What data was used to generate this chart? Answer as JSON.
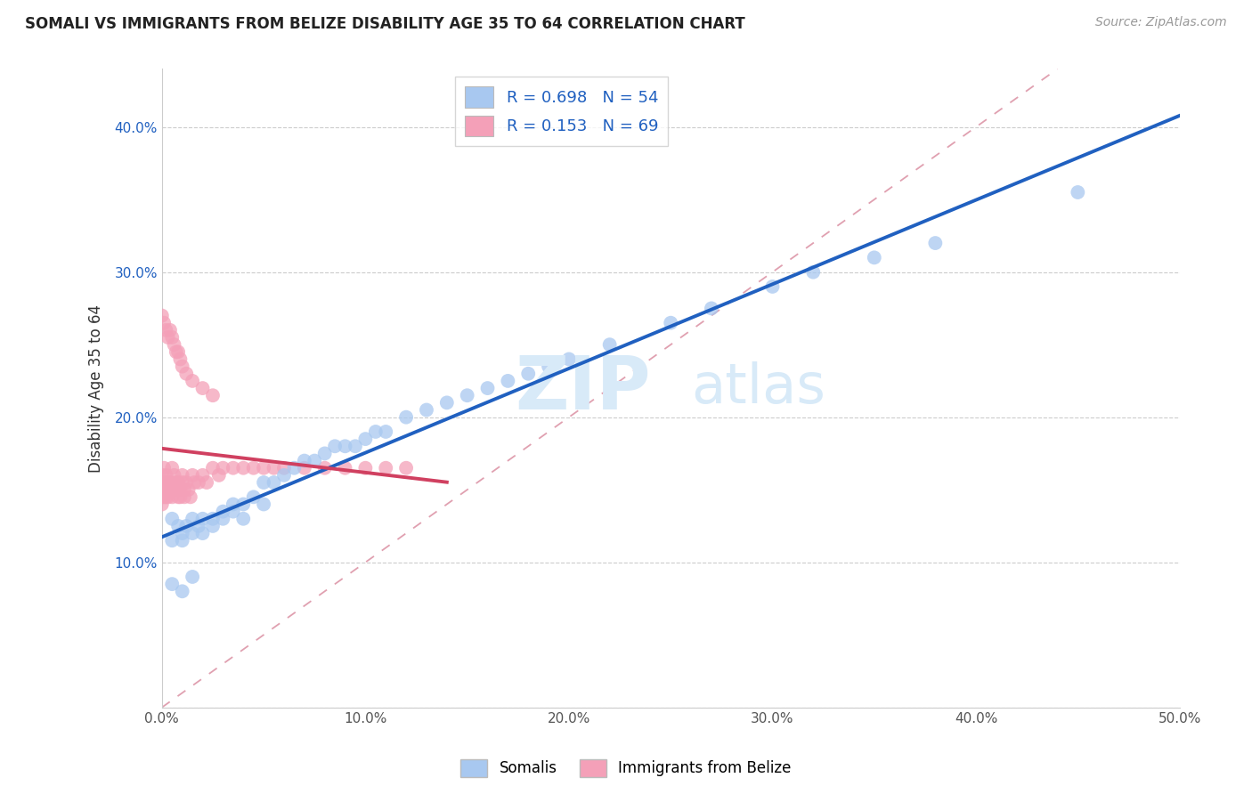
{
  "title": "SOMALI VS IMMIGRANTS FROM BELIZE DISABILITY AGE 35 TO 64 CORRELATION CHART",
  "source": "Source: ZipAtlas.com",
  "ylabel": "Disability Age 35 to 64",
  "xlim": [
    0.0,
    0.5
  ],
  "ylim": [
    0.0,
    0.44
  ],
  "xticks": [
    0.0,
    0.1,
    0.2,
    0.3,
    0.4,
    0.5
  ],
  "yticks": [
    0.0,
    0.1,
    0.2,
    0.3,
    0.4
  ],
  "somali_R": 0.698,
  "somali_N": 54,
  "belize_R": 0.153,
  "belize_N": 69,
  "somali_color": "#a8c8f0",
  "belize_color": "#f4a0b8",
  "somali_line_color": "#2060c0",
  "belize_line_color": "#d04060",
  "ref_line_color": "#e0a0b0",
  "legend_label_somali": "Somalis",
  "legend_label_belize": "Immigrants from Belize",
  "watermark_zip": "ZIP",
  "watermark_atlas": "atlas",
  "somali_x": [
    0.005,
    0.005,
    0.008,
    0.01,
    0.01,
    0.012,
    0.015,
    0.015,
    0.018,
    0.02,
    0.02,
    0.025,
    0.025,
    0.03,
    0.03,
    0.035,
    0.035,
    0.04,
    0.04,
    0.045,
    0.05,
    0.05,
    0.055,
    0.06,
    0.065,
    0.07,
    0.075,
    0.08,
    0.085,
    0.09,
    0.095,
    0.1,
    0.105,
    0.11,
    0.12,
    0.13,
    0.14,
    0.15,
    0.16,
    0.17,
    0.18,
    0.19,
    0.2,
    0.22,
    0.25,
    0.27,
    0.3,
    0.32,
    0.35,
    0.005,
    0.01,
    0.015,
    0.38,
    0.45
  ],
  "somali_y": [
    0.13,
    0.115,
    0.125,
    0.12,
    0.115,
    0.125,
    0.12,
    0.13,
    0.125,
    0.13,
    0.12,
    0.13,
    0.125,
    0.13,
    0.135,
    0.14,
    0.135,
    0.14,
    0.13,
    0.145,
    0.14,
    0.155,
    0.155,
    0.16,
    0.165,
    0.17,
    0.17,
    0.175,
    0.18,
    0.18,
    0.18,
    0.185,
    0.19,
    0.19,
    0.2,
    0.205,
    0.21,
    0.215,
    0.22,
    0.225,
    0.23,
    0.235,
    0.24,
    0.25,
    0.265,
    0.275,
    0.29,
    0.3,
    0.31,
    0.085,
    0.08,
    0.09,
    0.32,
    0.355
  ],
  "belize_x": [
    0.0,
    0.0,
    0.0,
    0.0,
    0.0,
    0.001,
    0.001,
    0.001,
    0.002,
    0.002,
    0.002,
    0.003,
    0.003,
    0.003,
    0.004,
    0.004,
    0.005,
    0.005,
    0.005,
    0.006,
    0.006,
    0.007,
    0.007,
    0.008,
    0.008,
    0.009,
    0.009,
    0.01,
    0.01,
    0.011,
    0.011,
    0.012,
    0.013,
    0.014,
    0.015,
    0.016,
    0.018,
    0.02,
    0.022,
    0.025,
    0.028,
    0.03,
    0.035,
    0.04,
    0.045,
    0.05,
    0.055,
    0.06,
    0.07,
    0.08,
    0.09,
    0.1,
    0.11,
    0.12,
    0.0,
    0.001,
    0.002,
    0.003,
    0.004,
    0.005,
    0.006,
    0.007,
    0.008,
    0.009,
    0.01,
    0.012,
    0.015,
    0.02,
    0.025
  ],
  "belize_y": [
    0.155,
    0.15,
    0.145,
    0.14,
    0.16,
    0.165,
    0.155,
    0.145,
    0.16,
    0.155,
    0.145,
    0.155,
    0.15,
    0.145,
    0.155,
    0.15,
    0.165,
    0.155,
    0.145,
    0.16,
    0.15,
    0.155,
    0.15,
    0.155,
    0.145,
    0.15,
    0.145,
    0.16,
    0.155,
    0.15,
    0.145,
    0.155,
    0.15,
    0.145,
    0.16,
    0.155,
    0.155,
    0.16,
    0.155,
    0.165,
    0.16,
    0.165,
    0.165,
    0.165,
    0.165,
    0.165,
    0.165,
    0.165,
    0.165,
    0.165,
    0.165,
    0.165,
    0.165,
    0.165,
    0.27,
    0.265,
    0.26,
    0.255,
    0.26,
    0.255,
    0.25,
    0.245,
    0.245,
    0.24,
    0.235,
    0.23,
    0.225,
    0.22,
    0.215
  ]
}
